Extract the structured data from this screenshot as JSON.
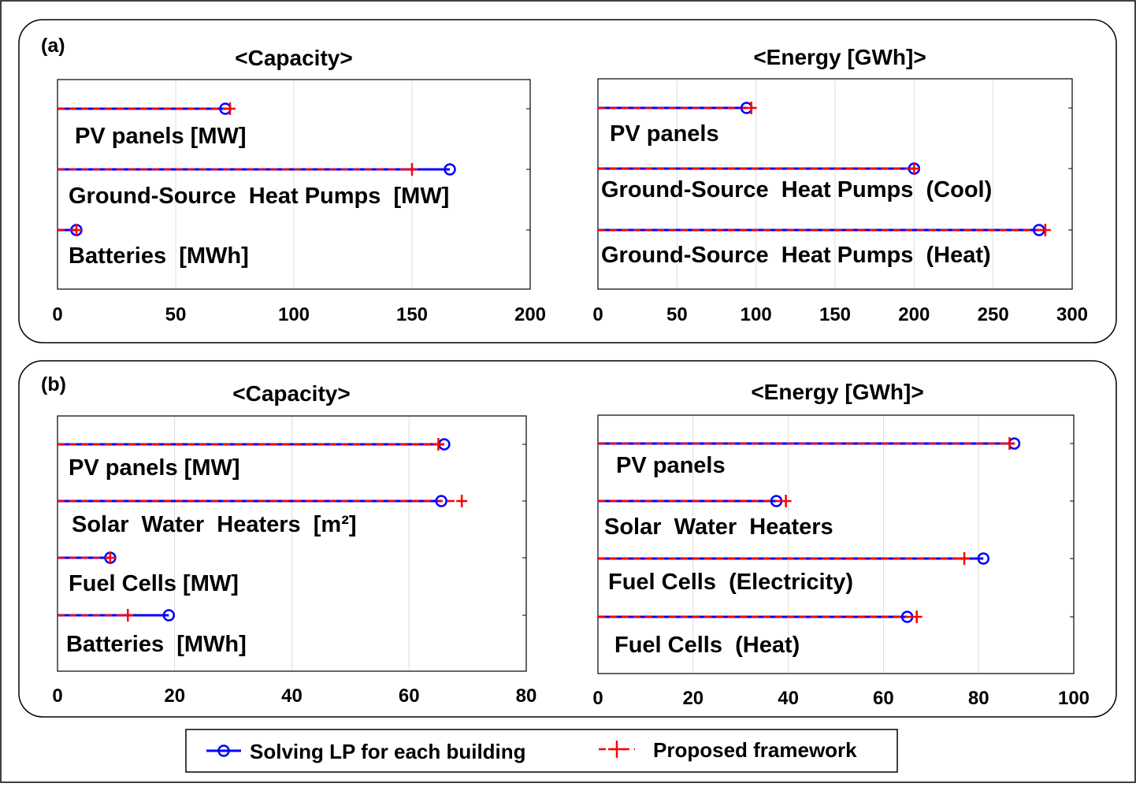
{
  "panels": [
    {
      "label": "(a)"
    },
    {
      "label": "(b)"
    }
  ],
  "legend": {
    "lp_label": "Solving LP for each building",
    "proposed_label": "Proposed framework"
  },
  "colors": {
    "lp": "#0000ff",
    "proposed": "#ff0000",
    "frame": "#000000",
    "grid": "#dcdcdc"
  },
  "chart_data": [
    {
      "type": "dot-line",
      "panel": "(a)",
      "title": "<Capacity>",
      "xlabel": "",
      "ylabel": "",
      "xlim": [
        0,
        200
      ],
      "xticks": [
        "0",
        "50",
        "100",
        "150",
        "200"
      ],
      "grid": true,
      "categories": [
        "PV panels [MW]",
        "Ground-Source  Heat Pumps  [MW]",
        "Batteries  [MWh]"
      ],
      "series": [
        {
          "name": "Solving LP for each building",
          "values": [
            71,
            166,
            8
          ]
        },
        {
          "name": "Proposed framework",
          "values": [
            73,
            150,
            8
          ]
        }
      ]
    },
    {
      "type": "dot-line",
      "panel": "(a)",
      "title": "<Energy  [GWh]>",
      "xlabel": "",
      "ylabel": "",
      "xlim": [
        0,
        300
      ],
      "xticks": [
        "0",
        "50",
        "100",
        "150",
        "200",
        "250",
        "300"
      ],
      "grid": true,
      "categories": [
        "PV panels",
        "Ground-Source  Heat Pumps  (Cool)",
        "Ground-Source  Heat Pumps  (Heat)"
      ],
      "series": [
        {
          "name": "Solving LP for each building",
          "values": [
            94,
            200,
            279
          ]
        },
        {
          "name": "Proposed framework",
          "values": [
            97,
            200,
            283
          ]
        }
      ]
    },
    {
      "type": "dot-line",
      "panel": "(b)",
      "title": "<Capacity>",
      "xlabel": "",
      "ylabel": "",
      "xlim": [
        0,
        80
      ],
      "xticks": [
        "0",
        "20",
        "40",
        "60",
        "80"
      ],
      "grid": true,
      "categories": [
        "PV panels [MW]",
        "Solar  Water  Heaters  [m²]",
        "Fuel Cells [MW]",
        "Batteries  [MWh]"
      ],
      "series": [
        {
          "name": "Solving LP for each building",
          "values": [
            66,
            65.5,
            9,
            19
          ]
        },
        {
          "name": "Proposed framework",
          "values": [
            65,
            69,
            9,
            12
          ]
        }
      ]
    },
    {
      "type": "dot-line",
      "panel": "(b)",
      "title": "<Energy  [GWh]>",
      "xlabel": "",
      "ylabel": "",
      "xlim": [
        0,
        100
      ],
      "xticks": [
        "0",
        "20",
        "40",
        "60",
        "80",
        "100"
      ],
      "grid": true,
      "categories": [
        "PV panels",
        "Solar  Water  Heaters",
        "Fuel Cells  (Electricity)",
        "Fuel Cells  (Heat)"
      ],
      "series": [
        {
          "name": "Solving LP for each building",
          "values": [
            87.5,
            37.5,
            81,
            65
          ]
        },
        {
          "name": "Proposed framework",
          "values": [
            86.5,
            39.5,
            77,
            67
          ]
        }
      ]
    }
  ]
}
